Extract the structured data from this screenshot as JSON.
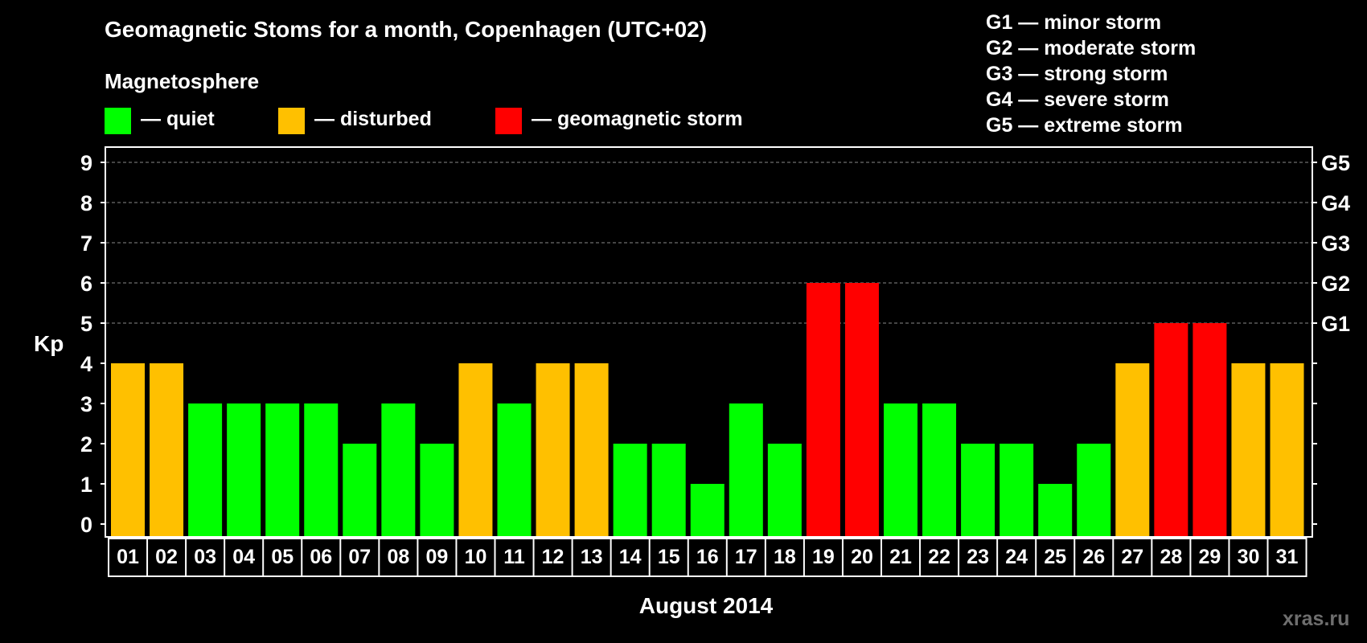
{
  "title": "Geomagnetic Stoms for a month, Copenhagen (UTC+02)",
  "subtitle": "Magnetosphere",
  "legend": [
    {
      "label": "— quiet",
      "color": "#00ff00"
    },
    {
      "label": "— disturbed",
      "color": "#ffc000"
    },
    {
      "label": "— geomagnetic storm",
      "color": "#ff0000"
    }
  ],
  "storm_scale": [
    "G1 — minor storm",
    "G2 — moderate storm",
    "G3 — strong storm",
    "G4 — severe storm",
    "G5 — extreme storm"
  ],
  "watermark": "xras.ru",
  "chart_data": {
    "type": "bar",
    "xlabel": "August 2014",
    "ylabel": "Kp",
    "ylim": [
      0,
      9
    ],
    "yticks": [
      "0",
      "1",
      "2",
      "3",
      "4",
      "5",
      "6",
      "7",
      "8",
      "9"
    ],
    "right_ticks": [
      {
        "value": 5,
        "label": "G1"
      },
      {
        "value": 6,
        "label": "G2"
      },
      {
        "value": 7,
        "label": "G3"
      },
      {
        "value": 8,
        "label": "G4"
      },
      {
        "value": 9,
        "label": "G5"
      }
    ],
    "grid": "dashed horizontal lines at Kp 5 to 9",
    "categories": [
      "01",
      "02",
      "03",
      "04",
      "05",
      "06",
      "07",
      "08",
      "09",
      "10",
      "11",
      "12",
      "13",
      "14",
      "15",
      "16",
      "17",
      "18",
      "19",
      "20",
      "21",
      "22",
      "23",
      "24",
      "25",
      "26",
      "27",
      "28",
      "29",
      "30",
      "31"
    ],
    "values": [
      4,
      4,
      3,
      3,
      3,
      3,
      2,
      3,
      2,
      4,
      3,
      4,
      4,
      2,
      2,
      1,
      3,
      2,
      6,
      6,
      3,
      3,
      2,
      2,
      1,
      2,
      4,
      5,
      5,
      4,
      4
    ],
    "colors": {
      "quiet": "#00ff00",
      "disturbed": "#ffc000",
      "storm": "#ff0000"
    }
  }
}
